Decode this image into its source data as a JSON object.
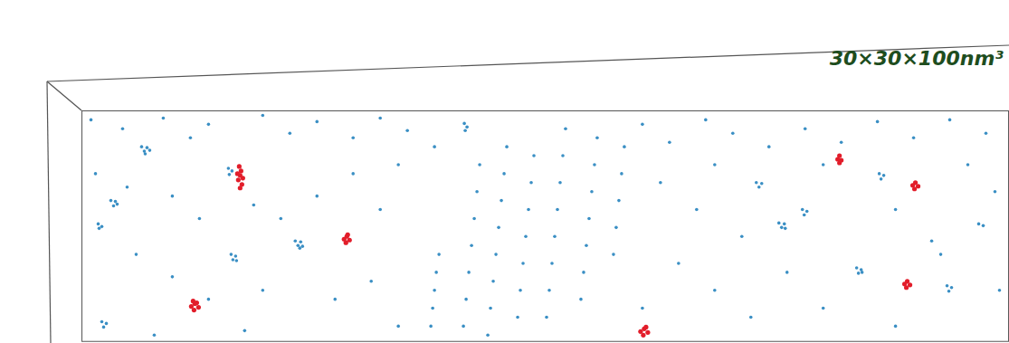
{
  "chart_data": {
    "type": "scatter",
    "title": "30×30×100nm³",
    "tick_labels": false,
    "xlim": [
      0,
      1025
    ],
    "ylim": [
      0,
      257
    ],
    "series": [
      {
        "color": "#3a8fc4",
        "marker": "dot",
        "x": [
          66,
          72,
          69,
          75,
          70,
          32,
          37,
          35,
          39,
          18,
          22,
          19,
          162,
          166,
          163,
          165,
          170,
          167,
          171,
          236,
          242,
          239,
          244,
          241,
          423,
          426,
          424,
          746,
          752,
          749,
          771,
          777,
          774,
          778,
          797,
          802,
          799,
          882,
          887,
          884,
          857,
          862,
          859,
          863,
          957,
          962,
          959,
          22,
          27,
          24,
          992,
          997,
          395,
          392,
          390,
          388,
          386,
          440,
          437,
          434,
          431,
          428,
          425,
          422,
          470,
          467,
          464,
          461,
          458,
          455,
          452,
          449,
          500,
          497,
          494,
          491,
          488,
          485,
          482,
          535,
          532,
          529,
          526,
          523,
          520,
          517,
          514,
          570,
          567,
          564,
          561,
          558,
          555,
          552,
          600,
          597,
          594,
          591,
          588,
          10,
          45,
          90,
          120,
          140,
          200,
          230,
          260,
          300,
          330,
          360,
          390,
          620,
          650,
          690,
          720,
          760,
          800,
          840,
          880,
          920,
          960,
          1000,
          15,
          50,
          100,
          130,
          190,
          220,
          260,
          300,
          330,
          350,
          640,
          680,
          700,
          730,
          820,
          900,
          940,
          980,
          1010,
          60,
          100,
          140,
          200,
          280,
          320,
          350,
          660,
          700,
          740,
          780,
          820,
          900,
          950,
          1015,
          80,
          180,
          620
        ],
        "y": [
          40,
          41,
          45,
          44,
          48,
          100,
          101,
          106,
          104,
          126,
          129,
          131,
          64,
          67,
          71,
          160,
          162,
          166,
          167,
          145,
          146,
          150,
          151,
          153,
          14,
          18,
          22,
          80,
          81,
          85,
          125,
          126,
          130,
          131,
          110,
          112,
          116,
          70,
          72,
          76,
          175,
          177,
          181,
          180,
          195,
          197,
          201,
          235,
          237,
          241,
          126,
          128,
          160,
          180,
          200,
          220,
          240,
          60,
          90,
          120,
          150,
          180,
          210,
          240,
          40,
          70,
          100,
          130,
          160,
          190,
          220,
          250,
          50,
          80,
          110,
          140,
          170,
          200,
          230,
          20,
          50,
          80,
          110,
          140,
          170,
          200,
          230,
          30,
          60,
          90,
          120,
          150,
          180,
          210,
          40,
          70,
          100,
          130,
          160,
          10,
          20,
          8,
          30,
          15,
          5,
          25,
          12,
          30,
          8,
          22,
          40,
          15,
          35,
          10,
          25,
          40,
          20,
          35,
          12,
          30,
          10,
          25,
          70,
          85,
          95,
          120,
          105,
          120,
          95,
          70,
          110,
          60,
          80,
          110,
          60,
          140,
          60,
          110,
          145,
          60,
          90,
          160,
          185,
          210,
          200,
          210,
          190,
          240,
          170,
          200,
          230,
          180,
          220,
          240,
          160,
          200,
          250,
          245,
          220
        ]
      },
      {
        "color": "#e21d2a",
        "marker": "dot",
        "x": [
          174,
          176,
          175,
          173,
          177,
          175,
          172,
          178,
          293,
          290,
          296,
          292,
          294,
          125,
          121,
          129,
          124,
          127,
          123,
          838,
          836,
          840,
          838,
          922,
          919,
          925,
          921,
          913,
          910,
          916,
          912,
          622,
          618,
          626,
          621,
          624
        ],
        "y": [
          62,
          67,
          72,
          77,
          82,
          86,
          70,
          75,
          140,
          143,
          144,
          147,
          138,
          215,
          218,
          219,
          222,
          214,
          212,
          50,
          54,
          55,
          58,
          80,
          83,
          84,
          87,
          190,
          193,
          194,
          197,
          243,
          246,
          247,
          250,
          241
        ]
      }
    ]
  }
}
